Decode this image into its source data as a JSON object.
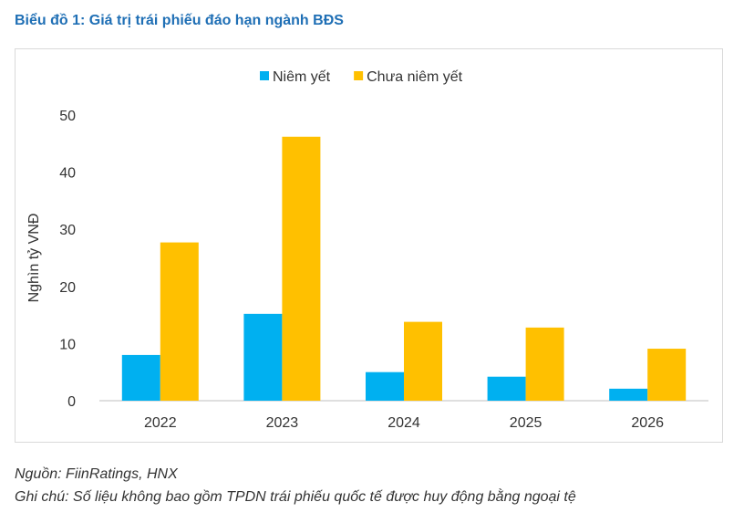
{
  "title": "Biểu đồ 1: Giá trị trái phiếu đáo hạn ngành BĐS",
  "colors": {
    "title": "#1f6fb5",
    "listed": "#00b0f0",
    "unlisted": "#ffc000"
  },
  "chart_data": {
    "type": "bar",
    "categories": [
      "2022",
      "2023",
      "2024",
      "2025",
      "2026"
    ],
    "series": [
      {
        "name": "Niêm yết",
        "values": [
          8,
          15.2,
          5,
          4.2,
          2.1
        ]
      },
      {
        "name": "Chưa niêm yết",
        "values": [
          27.7,
          46.2,
          13.8,
          12.8,
          9.1
        ]
      }
    ],
    "ylabel": "Nghìn tỷ VNĐ",
    "xlabel": "",
    "ylim": [
      0,
      50
    ],
    "yticks": [
      "0",
      "10",
      "20",
      "30",
      "40",
      "50"
    ],
    "grid": false,
    "legend": "top-center"
  },
  "notes": {
    "source": "Nguồn: FiinRatings, HNX",
    "remark": "Ghi chú: Số liệu không bao gồm TPDN trái phiếu quốc tế được huy động bằng ngoại tệ"
  }
}
